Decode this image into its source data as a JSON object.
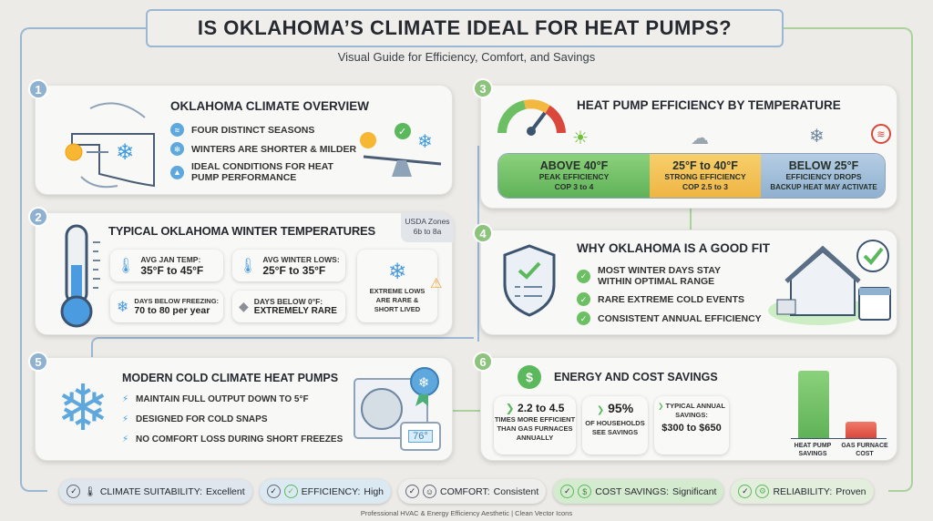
{
  "header": {
    "title": "IS OKLAHOMA’S CLIMATE IDEAL FOR HEAT PUMPS?",
    "subtitle": "Visual Guide for Efficiency, Comfort, and Savings"
  },
  "colors": {
    "background": "#ecebe7",
    "blue_accent": "#8fb2d1",
    "green_accent": "#8cc47d",
    "green_band": "#7cc270",
    "yellow_band": "#f3c35a",
    "blue_band": "#a7c1da"
  },
  "sections": [
    {
      "number": "1",
      "title": "OKLAHOMA CLIMATE OVERVIEW",
      "items": [
        "FOUR DISTINCT SEASONS",
        "WINTERS ARE SHORTER & MILDER",
        "IDEAL CONDITIONS FOR HEAT PUMP PERFORMANCE"
      ]
    },
    {
      "number": "2",
      "title": "TYPICAL OKLAHOMA WINTER TEMPERATURES",
      "zones": "USDA Zones 6b to 8a",
      "stats": [
        {
          "label": "AVG JAN TEMP:",
          "value": "35°F to 45°F"
        },
        {
          "label": "AVG WINTER LOWS:",
          "value": "25°F to 35°F"
        },
        {
          "label": "DAYS BELOW FREEZING:",
          "value": "70 to 80 per year"
        },
        {
          "label": "DAYS BELOW 0°F:",
          "value": "EXTREMELY RARE"
        }
      ],
      "callout": "EXTREME LOWS ARE RARE & SHORT LIVED"
    },
    {
      "number": "3",
      "title": "HEAT PUMP EFFICIENCY BY TEMPERATURE",
      "bands": [
        {
          "range": "ABOVE 40°F",
          "line1": "PEAK EFFICIENCY",
          "line2": "COP 3 to 4"
        },
        {
          "range": "25°F to 40°F",
          "line1": "STRONG EFFICIENCY",
          "line2": "COP 2.5 to 3"
        },
        {
          "range": "BELOW 25°F",
          "line1": "EFFICIENCY DROPS",
          "line2": "BACKUP HEAT MAY ACTIVATE"
        }
      ]
    },
    {
      "number": "4",
      "title": "WHY OKLAHOMA IS A GOOD FIT",
      "items": [
        "MOST WINTER DAYS STAY WITHIN OPTIMAL RANGE",
        "RARE EXTREME COLD EVENTS",
        "CONSISTENT ANNUAL EFFICIENCY"
      ]
    },
    {
      "number": "5",
      "title": "MODERN COLD CLIMATE HEAT PUMPS",
      "items": [
        "MAINTAIN FULL OUTPUT DOWN TO 5°F",
        "DESIGNED FOR COLD SNAPS",
        "NO COMFORT LOSS DURING SHORT FREEZES"
      ],
      "thermostat": "76°"
    },
    {
      "number": "6",
      "title": "ENERGY AND COST SAVINGS",
      "stats": [
        {
          "value": "2.2 to 4.5",
          "label": "TIMES MORE EFFICIENT THAN GAS FURNACES ANNUALLY"
        },
        {
          "value": "95%",
          "label": "OF HOUSEHOLDS SEE SAVINGS"
        },
        {
          "label": "TYPICAL ANNUAL SAVINGS:",
          "value": "$300 to $650"
        }
      ],
      "bars": [
        {
          "label": "HEAT PUMP SAVINGS"
        },
        {
          "label": "GAS FURNACE COST"
        }
      ]
    }
  ],
  "summary": [
    {
      "key": "CLIMATE SUITABILITY:",
      "value": "Excellent",
      "icon": "thermometer-icon"
    },
    {
      "key": "EFFICIENCY:",
      "value": "High",
      "icon": "check-icon"
    },
    {
      "key": "COMFORT:",
      "value": "Consistent",
      "icon": "smile-icon"
    },
    {
      "key": "COST SAVINGS:",
      "value": "Significant",
      "icon": "dollar-icon"
    },
    {
      "key": "RELIABILITY:",
      "value": "Proven",
      "icon": "gear-check-icon"
    }
  ],
  "footer": "Professional HVAC & Energy Efficiency Aesthetic | Clean Vector Icons"
}
